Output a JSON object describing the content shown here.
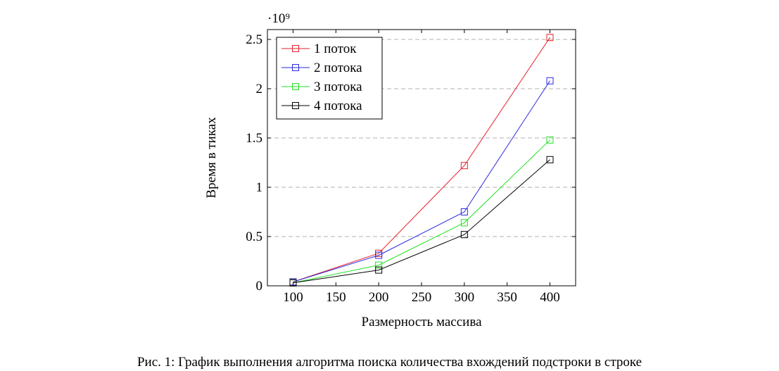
{
  "chart_data": {
    "type": "line",
    "xlabel": "Размерность массива",
    "ylabel": "Время в тиках",
    "scale_label": "·10⁹",
    "x": [
      100,
      200,
      300,
      400
    ],
    "xlim": [
      70,
      430
    ],
    "ylim": [
      0,
      2.6
    ],
    "xticks": [
      100,
      150,
      200,
      250,
      300,
      350,
      400
    ],
    "yticks": [
      0,
      0.5,
      1,
      1.5,
      2,
      2.5
    ],
    "ytick_labels": [
      "0",
      "0.5",
      "1",
      "1.5",
      "2",
      "2.5"
    ],
    "grid": "horizontal dashed",
    "legend_position": "top-left",
    "marker": "square",
    "series": [
      {
        "name": "1 поток",
        "color": "#e8202a",
        "values": [
          0.04,
          0.33,
          1.22,
          2.52
        ]
      },
      {
        "name": "2 потока",
        "color": "#2a2ae0",
        "values": [
          0.04,
          0.31,
          0.75,
          2.08
        ]
      },
      {
        "name": "3 потока",
        "color": "#22e022",
        "values": [
          0.03,
          0.21,
          0.64,
          1.48
        ]
      },
      {
        "name": "4 потока",
        "color": "#000000",
        "values": [
          0.03,
          0.16,
          0.52,
          1.28
        ]
      }
    ]
  },
  "caption": "Рис. 1: График выполнения алгоритма поиска количества вхождений подстроки в строке"
}
